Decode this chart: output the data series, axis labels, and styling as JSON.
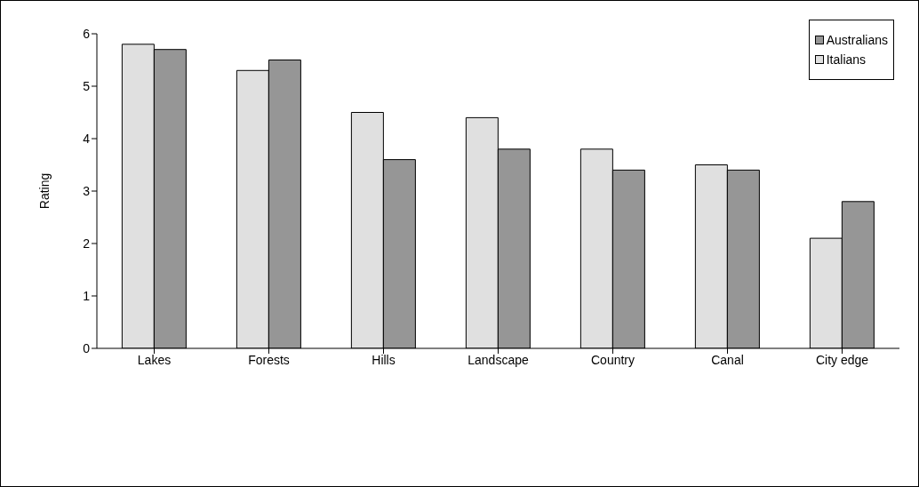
{
  "chart_data": {
    "type": "bar",
    "ylabel": "Rating",
    "categories": [
      "Lakes",
      "Forests",
      "Hills",
      "Landscape",
      "Country",
      "Canal",
      "City edge"
    ],
    "series": [
      {
        "name": "Italians",
        "color": "#e0e0e0",
        "values": [
          5.8,
          5.3,
          4.5,
          4.4,
          3.8,
          3.5,
          2.1
        ]
      },
      {
        "name": "Australians",
        "color": "#969696",
        "values": [
          5.7,
          5.5,
          3.6,
          3.8,
          3.4,
          3.4,
          2.8
        ]
      }
    ],
    "ylim": [
      0,
      6
    ],
    "yticks": [
      0,
      1,
      2,
      3,
      4,
      5,
      6
    ],
    "grid": false,
    "legend": "top right"
  }
}
